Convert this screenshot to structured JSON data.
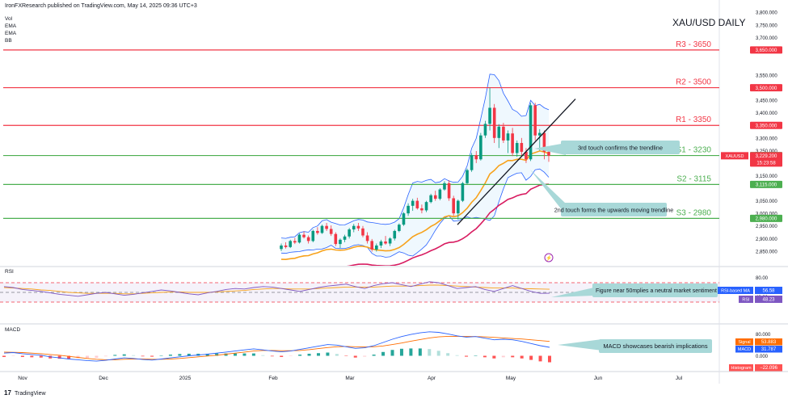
{
  "header": {
    "publisher": "IronFXResearch published on TradingView.com, May 14, 2025 09:36 UTC+3",
    "indicators": [
      "Vol",
      "EMA",
      "EMA",
      "BB"
    ]
  },
  "chart_data": {
    "type": "candlestick",
    "title": "XAU/USD DAILY",
    "x_months": [
      "Nov",
      "Dec",
      "2025",
      "Feb",
      "Mar",
      "Apr",
      "May",
      "Jun",
      "Jul"
    ],
    "y_ticks": [
      "3,800.000",
      "3,750.000",
      "3,700.000",
      "3,550.000",
      "3,500.000",
      "3,450.000",
      "3,400.000",
      "3,300.000",
      "3,250.000",
      "3,150.000",
      "3,050.000",
      "3,000.000",
      "2,950.000",
      "2,900.000",
      "2,850.000"
    ],
    "y_range": [
      2820,
      3800
    ],
    "levels": [
      {
        "name": "R3",
        "label": "R3 - 3650",
        "value": 3650,
        "tag": "3,650.000",
        "color": "#f23645"
      },
      {
        "name": "R2",
        "label": "R2 - 3500",
        "value": 3500,
        "tag": "3,500.000",
        "color": "#f23645"
      },
      {
        "name": "R1",
        "label": "R1 - 3350",
        "value": 3350,
        "tag": "3,350.000",
        "color": "#f23645"
      },
      {
        "name": "S1",
        "label": "S1 - 3230",
        "value": 3230,
        "tag": "3,230.000",
        "color": "#4caf50"
      },
      {
        "name": "S2",
        "label": "S2 - 3115",
        "value": 3115,
        "tag": "3,115.000",
        "color": "#4caf50"
      },
      {
        "name": "S3",
        "label": "S3 - 2980",
        "value": 2980,
        "tag": "2,980.000",
        "color": "#4caf50"
      }
    ],
    "price_tag": {
      "symbol": "XAUUSD",
      "value": "3,229.200",
      "countdown": "15:23:58"
    },
    "candles": [
      [
        2858,
        2880,
        2850,
        2872
      ],
      [
        2872,
        2885,
        2860,
        2866
      ],
      [
        2866,
        2895,
        2862,
        2890
      ],
      [
        2890,
        2902,
        2878,
        2884
      ],
      [
        2884,
        2920,
        2880,
        2915
      ],
      [
        2915,
        2928,
        2900,
        2905
      ],
      [
        2905,
        2912,
        2880,
        2890
      ],
      [
        2890,
        2935,
        2885,
        2930
      ],
      [
        2930,
        2945,
        2915,
        2922
      ],
      [
        2922,
        2955,
        2918,
        2950
      ],
      [
        2950,
        2962,
        2930,
        2938
      ],
      [
        2938,
        2952,
        2910,
        2918
      ],
      [
        2918,
        2925,
        2870,
        2878
      ],
      [
        2878,
        2900,
        2862,
        2895
      ],
      [
        2895,
        2915,
        2885,
        2908
      ],
      [
        2908,
        2942,
        2900,
        2936
      ],
      [
        2936,
        2958,
        2925,
        2950
      ],
      [
        2950,
        2962,
        2930,
        2940
      ],
      [
        2940,
        2950,
        2905,
        2912
      ],
      [
        2912,
        2925,
        2880,
        2890
      ],
      [
        2890,
        2898,
        2848,
        2856
      ],
      [
        2856,
        2880,
        2848,
        2872
      ],
      [
        2872,
        2895,
        2862,
        2888
      ],
      [
        2888,
        2910,
        2875,
        2880
      ],
      [
        2880,
        2905,
        2870,
        2900
      ],
      [
        2900,
        2935,
        2892,
        2930
      ],
      [
        2930,
        2960,
        2925,
        2955
      ],
      [
        2955,
        3005,
        2950,
        3000
      ],
      [
        3000,
        3040,
        2990,
        3030
      ],
      [
        3030,
        3058,
        3010,
        3050
      ],
      [
        3050,
        3062,
        3015,
        3020
      ],
      [
        3020,
        3035,
        3000,
        3012
      ],
      [
        3012,
        3050,
        3005,
        3045
      ],
      [
        3045,
        3078,
        3040,
        3072
      ],
      [
        3072,
        3090,
        3050,
        3058
      ],
      [
        3058,
        3100,
        3052,
        3095
      ],
      [
        3095,
        3128,
        3090,
        3120
      ],
      [
        3120,
        3132,
        3050,
        3060
      ],
      [
        3060,
        3070,
        2990,
        3000
      ],
      [
        3000,
        3055,
        2975,
        3050
      ],
      [
        3050,
        3125,
        3045,
        3120
      ],
      [
        3120,
        3178,
        3115,
        3172
      ],
      [
        3172,
        3240,
        3165,
        3232
      ],
      [
        3232,
        3248,
        3200,
        3215
      ],
      [
        3215,
        3320,
        3210,
        3310
      ],
      [
        3310,
        3368,
        3300,
        3356
      ],
      [
        3356,
        3500,
        3330,
        3420
      ],
      [
        3420,
        3435,
        3280,
        3300
      ],
      [
        3300,
        3355,
        3260,
        3345
      ],
      [
        3345,
        3360,
        3280,
        3290
      ],
      [
        3290,
        3330,
        3240,
        3318
      ],
      [
        3318,
        3340,
        3228,
        3240
      ],
      [
        3240,
        3290,
        3225,
        3280
      ],
      [
        3280,
        3300,
        3230,
        3245
      ],
      [
        3245,
        3260,
        3200,
        3215
      ],
      [
        3215,
        3440,
        3208,
        3430
      ],
      [
        3430,
        3440,
        3290,
        3310
      ],
      [
        3310,
        3335,
        3250,
        3320
      ],
      [
        3320,
        3330,
        3215,
        3245
      ],
      [
        3245,
        3262,
        3205,
        3229
      ]
    ],
    "annotations": [
      "3rd touch confirms the trendline",
      "2nd touch forms the upwards moving trendline"
    ]
  },
  "rsi": {
    "label": "RSI",
    "ticks": [
      "80.00",
      "40.00"
    ],
    "tags": [
      {
        "name": "RSI-based MA",
        "value": "56.58"
      },
      {
        "name": "RSI",
        "value": "48.23"
      }
    ],
    "note": "Figure near 50mplies a neutral market sentiment",
    "values": [
      62,
      60,
      56,
      54,
      52,
      49,
      46,
      44,
      42,
      45,
      48,
      50,
      47,
      44,
      46,
      49,
      52,
      55,
      53,
      50,
      47,
      45,
      49,
      52,
      56,
      58,
      57,
      60,
      62,
      61,
      58,
      55,
      52,
      56,
      60,
      63,
      65,
      67,
      62,
      58,
      64,
      68,
      70,
      66,
      62,
      67,
      72,
      70,
      64,
      58,
      60,
      62,
      56,
      52,
      58,
      64,
      58,
      52,
      48,
      48.23
    ],
    "ma": [
      60,
      59,
      58,
      57,
      55,
      54,
      52,
      50,
      49,
      48,
      48,
      48,
      48,
      47,
      47,
      48,
      49,
      50,
      51,
      51,
      50,
      50,
      50,
      51,
      52,
      53,
      54,
      56,
      57,
      58,
      58,
      57,
      57,
      57,
      58,
      59,
      60,
      61,
      61,
      61,
      61,
      62,
      63,
      63,
      63,
      64,
      65,
      65,
      64,
      63,
      62,
      61,
      60,
      59,
      59,
      59,
      58,
      57.5,
      57,
      56.58
    ]
  },
  "macd": {
    "label": "MACD",
    "ticks": [
      "80.000",
      "0.000"
    ],
    "tags": [
      {
        "name": "Signal",
        "value": "53.883"
      },
      {
        "name": "MACD",
        "value": "31.787"
      },
      {
        "name": "Histogram",
        "value": "−22.096"
      }
    ],
    "note": "MACD showcases bearish implications",
    "macd": [
      10,
      12,
      8,
      5,
      2,
      -4,
      -8,
      -12,
      -15,
      -18,
      -20,
      -17,
      -12,
      -8,
      -10,
      -14,
      -16,
      -12,
      -8,
      -4,
      0,
      3,
      6,
      10,
      14,
      18,
      22,
      26,
      22,
      18,
      15,
      18,
      24,
      30,
      36,
      42,
      40,
      34,
      28,
      30,
      38,
      50,
      62,
      72,
      80,
      86,
      90,
      88,
      82,
      75,
      70,
      72,
      66,
      60,
      62,
      60,
      54,
      46,
      38,
      31.787
    ],
    "signal": [
      14,
      13,
      12,
      10,
      8,
      5,
      2,
      -2,
      -6,
      -10,
      -13,
      -15,
      -15,
      -13,
      -12,
      -12,
      -13,
      -13,
      -12,
      -10,
      -7,
      -4,
      -1,
      2,
      6,
      10,
      14,
      18,
      20,
      20,
      19,
      19,
      20,
      23,
      27,
      31,
      34,
      35,
      34,
      33,
      34,
      37,
      42,
      48,
      55,
      61,
      67,
      71,
      73,
      73,
      73,
      72,
      71,
      69,
      67,
      65,
      63,
      60,
      57,
      53.883
    ]
  },
  "time_axis_months": [
    "Nov",
    "Dec",
    "2025",
    "Feb",
    "Mar",
    "Apr",
    "May",
    "Jun",
    "Jul"
  ],
  "footer": {
    "brand": "TradingView"
  },
  "colors": {
    "up": "#089981",
    "down": "#f23645",
    "ema_fast": "#f7a21b",
    "ema_slow": "#d81b60",
    "bb": "#2962ff",
    "annotation": "#a8d8d8"
  }
}
